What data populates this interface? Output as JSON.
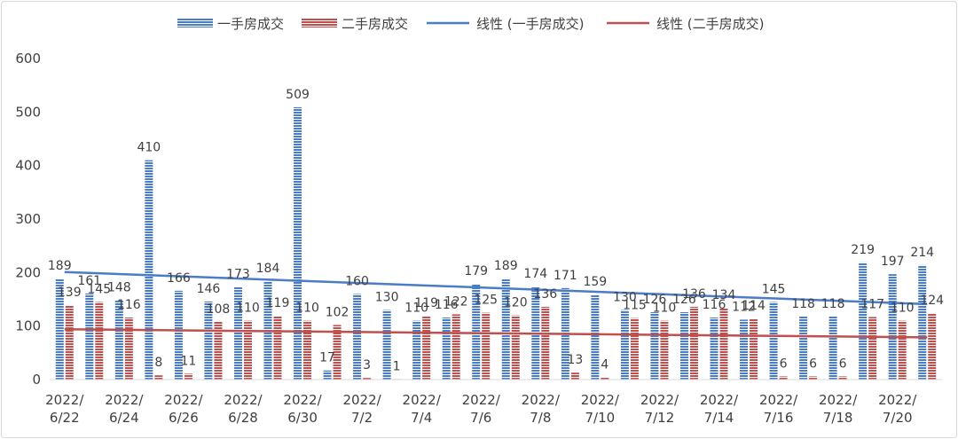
{
  "chart_data": {
    "type": "bar",
    "categories": [
      "2022/6/22",
      "2022/6/23",
      "2022/6/24",
      "2022/6/25",
      "2022/6/26",
      "2022/6/27",
      "2022/6/28",
      "2022/6/29",
      "2022/6/30",
      "2022/7/1",
      "2022/7/2",
      "2022/7/3",
      "2022/7/4",
      "2022/7/5",
      "2022/7/6",
      "2022/7/7",
      "2022/7/8",
      "2022/7/9",
      "2022/7/10",
      "2022/7/11",
      "2022/7/12",
      "2022/7/13",
      "2022/7/14",
      "2022/7/15",
      "2022/7/16",
      "2022/7/17",
      "2022/7/18",
      "2022/7/19",
      "2022/7/20",
      "2022/7/21"
    ],
    "tick_labels": [
      {
        "top": "2022/",
        "bottom": "6/22"
      },
      {
        "top": "2022/",
        "bottom": "6/24"
      },
      {
        "top": "2022/",
        "bottom": "6/26"
      },
      {
        "top": "2022/",
        "bottom": "6/28"
      },
      {
        "top": "2022/",
        "bottom": "6/30"
      },
      {
        "top": "2022/",
        "bottom": "7/2"
      },
      {
        "top": "2022/",
        "bottom": "7/4"
      },
      {
        "top": "2022/",
        "bottom": "7/6"
      },
      {
        "top": "2022/",
        "bottom": "7/8"
      },
      {
        "top": "2022/",
        "bottom": "7/10"
      },
      {
        "top": "2022/",
        "bottom": "7/12"
      },
      {
        "top": "2022/",
        "bottom": "7/14"
      },
      {
        "top": "2022/",
        "bottom": "7/16"
      },
      {
        "top": "2022/",
        "bottom": "7/18"
      },
      {
        "top": "2022/",
        "bottom": "7/20"
      }
    ],
    "series": [
      {
        "name": "一手房成交",
        "color": "#4a7cc7",
        "values": [
          189,
          161,
          148,
          410,
          166,
          146,
          173,
          184,
          509,
          17,
          160,
          130,
          110,
          116,
          179,
          189,
          174,
          171,
          159,
          130,
          126,
          126,
          116,
          112,
          145,
          118,
          118,
          219,
          197,
          214
        ]
      },
      {
        "name": "二手房成交",
        "color": "#c0504d",
        "values": [
          139,
          145,
          116,
          8,
          11,
          108,
          110,
          119,
          110,
          102,
          3,
          1,
          119,
          122,
          125,
          120,
          136,
          13,
          4,
          115,
          110,
          136,
          134,
          114,
          6,
          6,
          6,
          117,
          110,
          124
        ]
      }
    ],
    "trendlines": [
      {
        "name": "线性 (一手房成交)",
        "color": "#4a7cc7",
        "start": 201,
        "end": 141
      },
      {
        "name": "线性 (二手房成交)",
        "color": "#c0504d",
        "start": 94,
        "end": 79
      }
    ],
    "yticks": [
      "0",
      "100",
      "200",
      "300",
      "400",
      "500",
      "600"
    ],
    "ylim": [
      0,
      600
    ],
    "grid": false,
    "legend_position": "top"
  }
}
